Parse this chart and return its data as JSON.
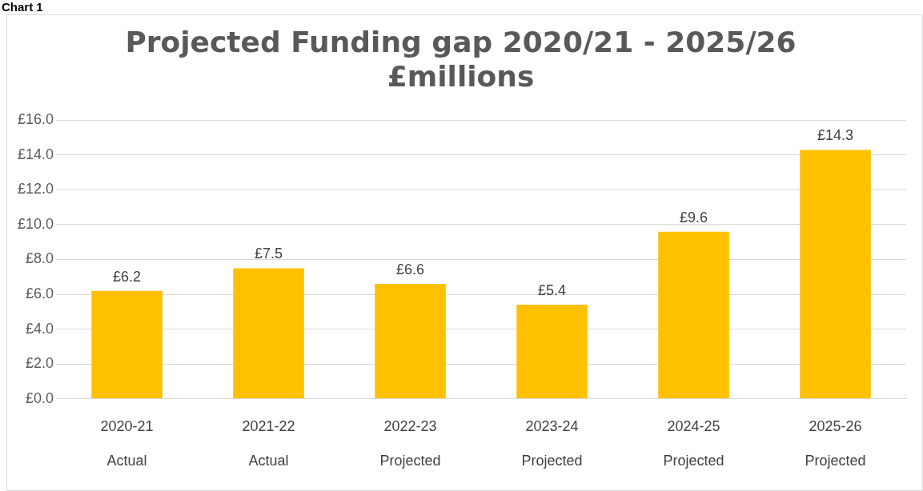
{
  "chart_data": {
    "type": "bar",
    "title": "Projected Funding gap 2020/21 - 2025/26\n£millions",
    "categories": [
      "2020-21\nActual",
      "2021-22\nActual",
      "2022-23\nProjected",
      "2023-24\nProjected",
      "2024-25\nProjected",
      "2025-26\nProjected"
    ],
    "values": [
      6.2,
      7.5,
      6.6,
      5.4,
      9.6,
      14.3
    ],
    "value_labels": [
      "£6.2",
      "£7.5",
      "£6.6",
      "£5.4",
      "£9.6",
      "£14.3"
    ],
    "color": "#ffc000",
    "ylim": [
      0,
      16
    ],
    "yticks": [
      {
        "value": 0,
        "label": "£0.0"
      },
      {
        "value": 2,
        "label": "£2.0"
      },
      {
        "value": 4,
        "label": "£4.0"
      },
      {
        "value": 6,
        "label": "£6.0"
      },
      {
        "value": 8,
        "label": "£8.0"
      },
      {
        "value": 10,
        "label": "£10.0"
      },
      {
        "value": 12,
        "label": "£12.0"
      },
      {
        "value": 14,
        "label": "£14.0"
      },
      {
        "value": 16,
        "label": "£16.0"
      }
    ],
    "grid": "y",
    "annotations": [
      "Chart 1"
    ]
  }
}
